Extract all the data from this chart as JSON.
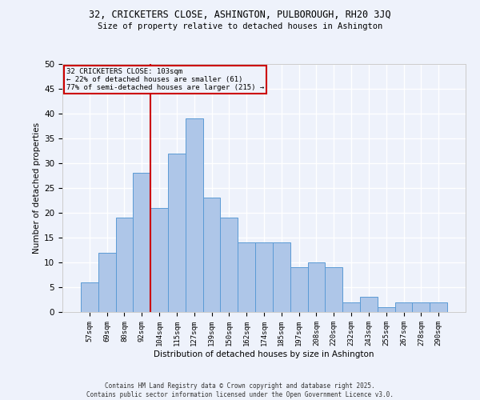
{
  "title1": "32, CRICKETERS CLOSE, ASHINGTON, PULBOROUGH, RH20 3JQ",
  "title2": "Size of property relative to detached houses in Ashington",
  "xlabel": "Distribution of detached houses by size in Ashington",
  "ylabel": "Number of detached properties",
  "categories": [
    "57sqm",
    "69sqm",
    "80sqm",
    "92sqm",
    "104sqm",
    "115sqm",
    "127sqm",
    "139sqm",
    "150sqm",
    "162sqm",
    "174sqm",
    "185sqm",
    "197sqm",
    "208sqm",
    "220sqm",
    "232sqm",
    "243sqm",
    "255sqm",
    "267sqm",
    "278sqm",
    "290sqm"
  ],
  "values": [
    6,
    12,
    19,
    28,
    21,
    32,
    39,
    23,
    19,
    14,
    14,
    14,
    9,
    10,
    9,
    2,
    3,
    1,
    2,
    2,
    2
  ],
  "bar_color": "#aec6e8",
  "bar_edge_color": "#5b9bd5",
  "vline_color": "#cc0000",
  "vline_bar_index": 4,
  "annotation_text": "32 CRICKETERS CLOSE: 103sqm\n← 22% of detached houses are smaller (61)\n77% of semi-detached houses are larger (215) →",
  "annotation_box_color": "#cc0000",
  "ylim": [
    0,
    50
  ],
  "yticks": [
    0,
    5,
    10,
    15,
    20,
    25,
    30,
    35,
    40,
    45,
    50
  ],
  "background_color": "#eef2fb",
  "grid_color": "#ffffff",
  "footer1": "Contains HM Land Registry data © Crown copyright and database right 2025.",
  "footer2": "Contains public sector information licensed under the Open Government Licence v3.0."
}
